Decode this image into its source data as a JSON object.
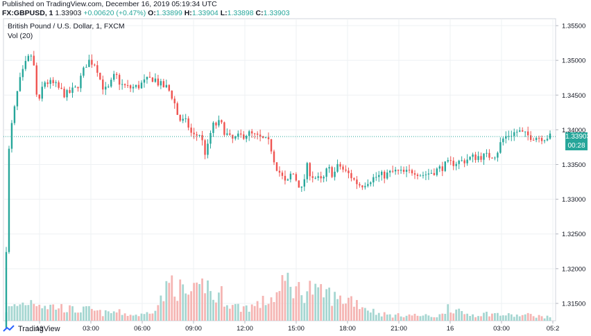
{
  "header": {
    "published": "Published on TradingView.com, December 16, 2019 05:19:34 UTC",
    "symbol": "FX:GBPUSD, 1",
    "last": "1.33903",
    "change": "+0.00620 (+0.47%)",
    "o_label": "O:",
    "o_value": "1.33899",
    "h_label": "H:",
    "h_value": "1.33904",
    "l_label": "L:",
    "l_value": "1.33898",
    "c_label": "C:",
    "c_value": "1.33903"
  },
  "footer": {
    "brand": "TradingView"
  },
  "badges": {
    "price": "1.33903",
    "timer": "00:28"
  },
  "colors": {
    "up": "#26a69a",
    "down": "#ef5350",
    "vol_up": "#a5d6d1",
    "vol_down": "#f5b5b3",
    "grid": "#eef0f3",
    "axis": "#b2b5be"
  },
  "chart_data": {
    "type": "candlestick",
    "title": "British Pound / U.S. Dollar, 1, FXCM",
    "legend": [
      "Vol (20)"
    ],
    "ylim": [
      1.3125,
      1.356
    ],
    "y_ticks": [
      "1.35500",
      "1.35000",
      "1.34500",
      "1.34000",
      "1.33500",
      "1.33000",
      "1.32500",
      "1.32000",
      "1.31500"
    ],
    "x_ticks": [
      "13",
      "03:00",
      "06:00",
      "09:00",
      "12:00",
      "15:00",
      "18:00",
      "21:00",
      "16",
      "03:00",
      "05:2"
    ],
    "last_price": 1.33903,
    "price_path": [
      [
        0,
        1.3115
      ],
      [
        1,
        1.3345
      ],
      [
        2,
        1.3395
      ],
      [
        5,
        1.3465
      ],
      [
        8,
        1.35
      ],
      [
        10,
        1.351
      ],
      [
        12,
        1.343
      ],
      [
        14,
        1.347
      ],
      [
        18,
        1.3465
      ],
      [
        22,
        1.345
      ],
      [
        26,
        1.346
      ],
      [
        28,
        1.348
      ],
      [
        30,
        1.35
      ],
      [
        33,
        1.3495
      ],
      [
        35,
        1.3465
      ],
      [
        37,
        1.3455
      ],
      [
        40,
        1.348
      ],
      [
        42,
        1.3465
      ],
      [
        45,
        1.346
      ],
      [
        48,
        1.3462
      ],
      [
        51,
        1.347
      ],
      [
        54,
        1.3475
      ],
      [
        56,
        1.3465
      ],
      [
        59,
        1.346
      ],
      [
        61,
        1.3445
      ],
      [
        63,
        1.3415
      ],
      [
        66,
        1.341
      ],
      [
        68,
        1.339
      ],
      [
        71,
        1.3395
      ],
      [
        72,
        1.337
      ],
      [
        73,
        1.3365
      ],
      [
        75,
        1.3405
      ],
      [
        78,
        1.341
      ],
      [
        80,
        1.3395
      ],
      [
        82,
        1.3385
      ],
      [
        85,
        1.339
      ],
      [
        88,
        1.3395
      ],
      [
        91,
        1.339
      ],
      [
        94,
        1.3385
      ],
      [
        96,
        1.338
      ],
      [
        98,
        1.335
      ],
      [
        100,
        1.3335
      ],
      [
        102,
        1.332
      ],
      [
        104,
        1.334
      ],
      [
        106,
        1.3325
      ],
      [
        108,
        1.331
      ],
      [
        109,
        1.335
      ],
      [
        111,
        1.3335
      ],
      [
        113,
        1.333
      ],
      [
        115,
        1.3325
      ],
      [
        117,
        1.3345
      ],
      [
        119,
        1.3335
      ],
      [
        121,
        1.335
      ],
      [
        123,
        1.334
      ],
      [
        125,
        1.3335
      ],
      [
        127,
        1.3325
      ],
      [
        129,
        1.332
      ],
      [
        132,
        1.3328
      ],
      [
        135,
        1.3333
      ],
      [
        138,
        1.3335
      ],
      [
        141,
        1.334
      ],
      [
        144,
        1.3338
      ],
      [
        146,
        1.3338
      ],
      [
        148,
        1.3342
      ],
      [
        151,
        1.3335
      ],
      [
        154,
        1.3338
      ],
      [
        157,
        1.3343
      ],
      [
        160,
        1.335
      ],
      [
        163,
        1.3353
      ],
      [
        166,
        1.3355
      ],
      [
        169,
        1.336
      ],
      [
        172,
        1.3362
      ],
      [
        175,
        1.3362
      ],
      [
        178,
        1.3365
      ],
      [
        180,
        1.3385
      ],
      [
        182,
        1.3392
      ],
      [
        184,
        1.3395
      ],
      [
        186,
        1.3398
      ],
      [
        188,
        1.3393
      ],
      [
        190,
        1.3391
      ],
      [
        192,
        1.339
      ],
      [
        195,
        1.3389
      ],
      [
        197,
        1.339
      ]
    ],
    "volume_path": [
      [
        0,
        0.15
      ],
      [
        5,
        0.22
      ],
      [
        10,
        0.28
      ],
      [
        15,
        0.2
      ],
      [
        20,
        0.18
      ],
      [
        25,
        0.14
      ],
      [
        30,
        0.15
      ],
      [
        35,
        0.1
      ],
      [
        40,
        0.12
      ],
      [
        45,
        0.08
      ],
      [
        50,
        0.08
      ],
      [
        55,
        0.22
      ],
      [
        58,
        0.4
      ],
      [
        60,
        0.55
      ],
      [
        62,
        0.45
      ],
      [
        65,
        0.35
      ],
      [
        70,
        0.38
      ],
      [
        72,
        0.55
      ],
      [
        75,
        0.3
      ],
      [
        78,
        0.35
      ],
      [
        82,
        0.2
      ],
      [
        85,
        0.18
      ],
      [
        90,
        0.2
      ],
      [
        95,
        0.28
      ],
      [
        98,
        0.35
      ],
      [
        100,
        0.45
      ],
      [
        102,
        0.55
      ],
      [
        105,
        0.42
      ],
      [
        108,
        0.4
      ],
      [
        110,
        0.45
      ],
      [
        113,
        0.35
      ],
      [
        116,
        0.38
      ],
      [
        120,
        0.28
      ],
      [
        125,
        0.3
      ],
      [
        130,
        0.18
      ],
      [
        135,
        0.1
      ],
      [
        140,
        0.07
      ],
      [
        145,
        0.08
      ],
      [
        150,
        0.07
      ],
      [
        155,
        0.06
      ],
      [
        158,
        0.08
      ],
      [
        160,
        0.22
      ],
      [
        162,
        0.15
      ],
      [
        165,
        0.1
      ],
      [
        170,
        0.08
      ],
      [
        175,
        0.1
      ],
      [
        180,
        0.08
      ],
      [
        185,
        0.07
      ],
      [
        190,
        0.08
      ],
      [
        195,
        0.05
      ],
      [
        197,
        0.05
      ]
    ]
  }
}
